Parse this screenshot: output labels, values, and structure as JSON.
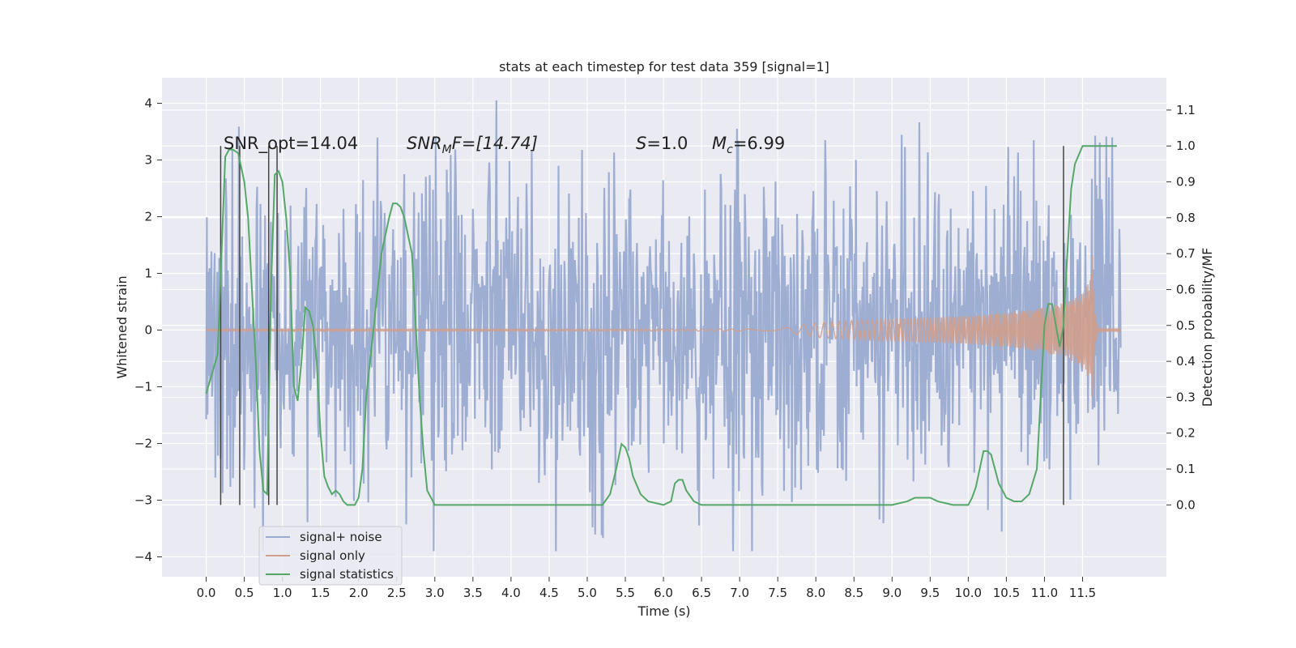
{
  "chart_data": {
    "type": "line",
    "title": "stats at each timestep for test data 359 [signal=1]",
    "xlabel": "Time (s)",
    "ylabel": "Whitened strain",
    "ylabel_right": "Detection probability/MF",
    "xlim": [
      -0.58,
      12.6
    ],
    "ylim": [
      -4.35,
      4.45
    ],
    "ylim_right": [
      -0.2,
      1.19
    ],
    "x_ticks": [
      0.0,
      0.5,
      1.0,
      1.5,
      2.0,
      2.5,
      3.0,
      3.5,
      4.0,
      4.5,
      5.0,
      5.5,
      6.0,
      6.5,
      7.0,
      7.5,
      8.0,
      8.5,
      9.0,
      9.5,
      10.0,
      10.5,
      11.0,
      11.5
    ],
    "x_tick_labels": [
      "0.0",
      "0.5",
      "1.0",
      "1.5",
      "2.0",
      "2.5",
      "3.0",
      "3.5",
      "4.0",
      "4.5",
      "5.0",
      "5.5",
      "6.0",
      "6.5",
      "7.0",
      "7.5",
      "8.0",
      "8.5",
      "9.0",
      "9.5",
      "10.0",
      "10.5",
      "11.0",
      "11.5"
    ],
    "y_ticks": [
      -4,
      -3,
      -2,
      -1,
      0,
      1,
      2,
      3,
      4
    ],
    "y_tick_labels": [
      "−4",
      "−3",
      "−2",
      "−1",
      "0",
      "1",
      "2",
      "3",
      "4"
    ],
    "y_right_ticks": [
      0.0,
      0.1,
      0.2,
      0.3,
      0.4,
      0.5,
      0.6,
      0.7,
      0.8,
      0.9,
      1.0,
      1.1
    ],
    "y_right_tick_labels": [
      "0.0",
      "0.1",
      "0.2",
      "0.3",
      "0.4",
      "0.5",
      "0.6",
      "0.7",
      "0.8",
      "0.9",
      "1.0",
      "1.1"
    ],
    "grid": true,
    "legend_position": "lower-left",
    "annotations": {
      "snr_opt": "SNR_opt=14.04",
      "snr_mf_sym": "SNR",
      "snr_mf_sub": "M",
      "snr_mf_rest": "F=[14.74]",
      "s_sym": "S",
      "s_rest": "=1.0",
      "mc_sym": "M",
      "mc_sub": "c",
      "mc_rest": "=6.99"
    },
    "vertical_markers_x": [
      0.19,
      0.44,
      0.82,
      0.93,
      11.25
    ],
    "series": [
      {
        "name": "signal+ noise",
        "color": "#9aabd0",
        "axis": "left",
        "kind": "noise",
        "duration": 12.0,
        "samples": 1400,
        "sigma": 1.0,
        "peak_range": [
          -3.9,
          4.1
        ]
      },
      {
        "name": "signal only",
        "color": "#cf9e8c",
        "axis": "left",
        "kind": "chirp_envelope",
        "envelope_t": [
          0.0,
          7.5,
          8.0,
          8.5,
          9.0,
          9.5,
          10.0,
          10.5,
          11.0,
          11.3,
          11.5,
          11.6,
          11.63,
          11.66,
          11.7,
          11.75
        ],
        "envelope_amp": [
          0.01,
          0.02,
          0.13,
          0.17,
          0.2,
          0.22,
          0.25,
          0.3,
          0.4,
          0.5,
          0.66,
          0.9,
          1.35,
          0.4,
          0.05,
          0.02
        ]
      },
      {
        "name": "signal statistics",
        "color": "#55a868",
        "axis": "right",
        "kind": "line",
        "x": [
          0.0,
          0.15,
          0.25,
          0.3,
          0.35,
          0.42,
          0.5,
          0.55,
          0.6,
          0.65,
          0.7,
          0.75,
          0.8,
          0.85,
          0.9,
          0.95,
          1.0,
          1.05,
          1.1,
          1.15,
          1.2,
          1.25,
          1.3,
          1.35,
          1.4,
          1.45,
          1.5,
          1.55,
          1.6,
          1.65,
          1.7,
          1.75,
          1.8,
          1.85,
          1.9,
          1.95,
          2.0,
          2.05,
          2.1,
          2.2,
          2.3,
          2.4,
          2.45,
          2.5,
          2.55,
          2.6,
          2.65,
          2.7,
          2.75,
          2.8,
          2.85,
          2.9,
          3.0,
          3.5,
          4.0,
          4.5,
          4.6,
          4.8,
          5.0,
          5.2,
          5.3,
          5.38,
          5.45,
          5.5,
          5.55,
          5.6,
          5.7,
          5.8,
          6.0,
          6.1,
          6.15,
          6.2,
          6.25,
          6.3,
          6.4,
          6.5,
          7.0,
          8.0,
          9.0,
          9.2,
          9.3,
          9.4,
          9.5,
          9.6,
          9.8,
          10.0,
          10.05,
          10.1,
          10.15,
          10.2,
          10.25,
          10.3,
          10.35,
          10.4,
          10.5,
          10.6,
          10.7,
          10.8,
          10.9,
          10.95,
          11.0,
          11.05,
          11.1,
          11.15,
          11.2,
          11.25,
          11.3,
          11.35,
          11.4,
          11.5,
          11.75,
          11.95
        ],
        "y": [
          0.31,
          0.42,
          0.97,
          0.99,
          0.99,
          0.98,
          0.9,
          0.8,
          0.6,
          0.4,
          0.15,
          0.04,
          0.03,
          0.6,
          0.92,
          0.93,
          0.9,
          0.8,
          0.65,
          0.33,
          0.29,
          0.4,
          0.55,
          0.54,
          0.5,
          0.4,
          0.2,
          0.08,
          0.05,
          0.03,
          0.04,
          0.03,
          0.01,
          0.0,
          0.0,
          0.0,
          0.02,
          0.1,
          0.3,
          0.5,
          0.7,
          0.8,
          0.84,
          0.84,
          0.83,
          0.8,
          0.75,
          0.7,
          0.5,
          0.3,
          0.15,
          0.04,
          0.0,
          0.0,
          0.0,
          0.0,
          0.0,
          0.0,
          0.0,
          0.0,
          0.03,
          0.1,
          0.17,
          0.16,
          0.13,
          0.08,
          0.03,
          0.01,
          0.0,
          0.01,
          0.06,
          0.07,
          0.07,
          0.04,
          0.01,
          0.0,
          0.0,
          0.0,
          0.0,
          0.01,
          0.02,
          0.02,
          0.02,
          0.01,
          0.0,
          0.0,
          0.02,
          0.05,
          0.1,
          0.15,
          0.15,
          0.14,
          0.1,
          0.06,
          0.02,
          0.01,
          0.01,
          0.03,
          0.1,
          0.3,
          0.5,
          0.56,
          0.56,
          0.5,
          0.44,
          0.5,
          0.7,
          0.88,
          0.95,
          1.0,
          1.0,
          1.0
        ]
      }
    ]
  }
}
